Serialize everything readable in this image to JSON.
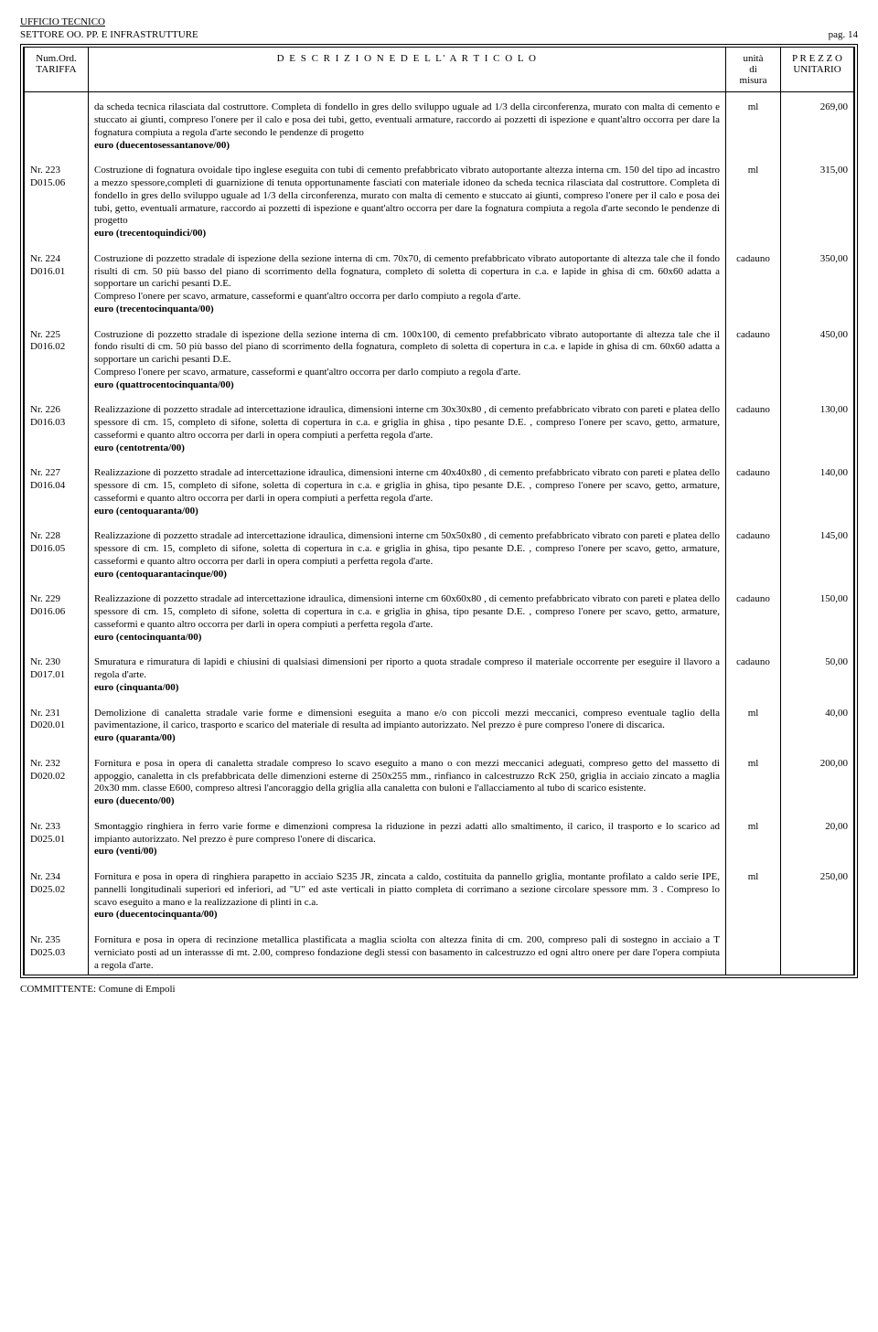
{
  "header": {
    "line1": "UFFICIO TECNICO",
    "line2": "SETTORE OO. PP. E INFRASTRUTTURE",
    "page_label": "pag. 14"
  },
  "columns": {
    "col1_l1": "Num.Ord.",
    "col1_l2": "TARIFFA",
    "col2": "D E S C R I Z I O N E   D E L L' A R T I C O L O",
    "col3_l1": "unità",
    "col3_l2": "di",
    "col3_l3": "misura",
    "col4_l1": "P R E Z Z O",
    "col4_l2": "UNITARIO"
  },
  "intro": {
    "desc": "da scheda tecnica rilasciata dal costruttore. Completa di fondello in gres dello sviluppo uguale ad 1/3 della circonferenza, murato con malta di cemento e stuccato ai giunti, compreso l'onere per il  calo e posa dei tubi, getto, eventuali armature, raccordo ai pozzetti di ispezione e quant'altro occorra per dare la fognatura compiuta a regola d'arte secondo le pendenze di progetto",
    "price_line": "euro (duecentosessantanove/00)",
    "unit": "ml",
    "price": "269,00"
  },
  "rows": [
    {
      "num1": "Nr. 223",
      "num2": "D015.06",
      "desc": "Costruzione di fognatura ovoidale tipo inglese eseguita con tubi di cemento prefabbricato vibrato autoportante altezza interna cm. 150 del tipo ad incastro a mezzo spessore,completi di guarnizione di tenuta  opportunamente fasciati con materiale idoneo da scheda tecnica rilasciata dal costruttore. Completa di fondello in gres dello sviluppo uguale ad 1/3 della circonferenza, murato con malta di cemento e stuccato ai giunti, compreso l'onere per il  calo e posa dei tubi, getto, eventuali armature, raccordo ai pozzetti di ispezione e quant'altro occorra per dare la fognatura compiuta a regola d'arte secondo le pendenze di progetto",
      "price_line": "euro (trecentoquindici/00)",
      "unit": "ml",
      "price": "315,00"
    },
    {
      "num1": "Nr. 224",
      "num2": "D016.01",
      "desc": "Costruzione di pozzetto stradale  di ispezione della sezione interna di cm. 70x70, di cemento prefabbricato vibrato autoportante di altezza tale che il fondo risulti di cm. 50  più basso del piano di scorrimento della fognatura,  completo di soletta di copertura in c.a. e lapide in ghisa di cm. 60x60 adatta a sopportare un carichi pesanti D.E.\nCompreso l'onere per scavo, armature, casseformi e quant'altro occorra  per darlo compiuto a regola d'arte.",
      "price_line": "euro (trecentocinquanta/00)",
      "unit": "cadauno",
      "price": "350,00"
    },
    {
      "num1": "Nr. 225",
      "num2": "D016.02",
      "desc": "Costruzione di pozzetto stradale  di ispezione della sezione interna di cm. 100x100, di cemento prefabbricato vibrato autoportante di altezza tale che il fondo risulti di cm. 50  più basso del piano di scorrimento della fognatura,  completo di soletta di copertura in c.a. e lapide in ghisa di cm. 60x60 adatta a sopportare un carichi pesanti D.E.\nCompreso l'onere per scavo, armature, casseformi e quant'altro occorra  per darlo compiuto a regola d'arte.",
      "price_line": "euro (quattrocentocinquanta/00)",
      "unit": "cadauno",
      "price": "450,00"
    },
    {
      "num1": "Nr. 226",
      "num2": "D016.03",
      "desc": "Realizzazione di pozzetto stradale ad intercettazione idraulica, dimensioni interne  cm 30x30x80 , di cemento prefabbricato vibrato con pareti e platea dello spessore di cm. 15, completo di sifone, soletta di copertura in c.a. e griglia in ghisa , tipo pesante D.E. , compreso l'onere per scavo, getto, armature, casseformi  e quanto altro occorra per darli in opera compiuti a perfetta regola d'arte.",
      "price_line": "euro (centotrenta/00)",
      "unit": "cadauno",
      "price": "130,00"
    },
    {
      "num1": "Nr. 227",
      "num2": "D016.04",
      "desc": "Realizzazione di pozzetto stradale ad intercettazione idraulica, dimensioni interne  cm 40x40x80 , di cemento prefabbricato vibrato con pareti e platea dello spessore di cm. 15, completo di sifone, soletta di copertura in c.a. e griglia in ghisa, tipo pesante D.E. , compreso l'onere per scavo, getto, armature, casseformi  e quanto altro occorra per darli in opera compiuti a perfetta regola d'arte.",
      "price_line": "euro (centoquaranta/00)",
      "unit": "cadauno",
      "price": "140,00"
    },
    {
      "num1": "Nr. 228",
      "num2": "D016.05",
      "desc": "Realizzazione di pozzetto stradale ad intercettazione idraulica, dimensioni interne  cm 50x50x80 , di cemento prefabbricato vibrato con pareti e platea dello spessore di cm. 15, completo di sifone, soletta di copertura in c.a. e griglia in ghisa, tipo pesante D.E. , compreso l'onere per scavo, getto, armature, casseformi  e quanto altro occorra per darli in opera compiuti a perfetta regola d'arte.",
      "price_line": "euro (centoquarantacinque/00)",
      "unit": "cadauno",
      "price": "145,00"
    },
    {
      "num1": "Nr. 229",
      "num2": "D016.06",
      "desc": "Realizzazione di pozzetto stradale ad intercettazione idraulica, dimensioni interne  cm 60x60x80 , di cemento prefabbricato vibrato con pareti e platea dello spessore di cm. 15, completo di sifone, soletta di copertura in c.a. e griglia in ghisa, tipo pesante D.E. , compreso l'onere per scavo, getto, armature, casseformi  e quanto altro occorra per darli in opera compiuti a perfetta regola d'arte.",
      "price_line": "euro (centocinquanta/00)",
      "unit": "cadauno",
      "price": "150,00"
    },
    {
      "num1": "Nr. 230",
      "num2": "D017.01",
      "desc": "Smuratura e rimuratura di lapidi e chiusini  di qualsiasi dimensioni  per riporto a quota stradale  compreso il materiale occorrente per eseguire il llavoro a regola d'arte.",
      "price_line": "euro (cinquanta/00)",
      "unit": "cadauno",
      "price": "50,00"
    },
    {
      "num1": "Nr. 231",
      "num2": "D020.01",
      "desc": "Demolizione di canaletta stradale varie forme e dimensioni eseguita a mano e/o con piccoli mezzi meccanici, compreso eventuale taglio della pavimentazione,  il carico, trasporto e scarico del materiale di resulta ad impianto autorizzato.  Nel prezzo è pure compreso l'onere di discarica.",
      "price_line": "euro (quaranta/00)",
      "unit": "ml",
      "price": "40,00"
    },
    {
      "num1": "Nr. 232",
      "num2": "D020.02",
      "desc": "Fornitura e posa in opera di canaletta stradale compreso lo scavo eseguito  a mano o  con mezzi meccanici adeguati, compreso getto del massetto di appoggio, canaletta in cls prefabbricata delle dimenzioni esterne di 250x255 mm., rinfianco in calcestruzzo RcK 250, griglia in acciaio zincato a maglia 20x30 mm.  classe E600,  compreso altresì  l'ancoraggio della griglia alla canaletta con buloni e l'allacciamento al tubo di scarico esistente.",
      "price_line": "euro (duecento/00)",
      "unit": "ml",
      "price": "200,00"
    },
    {
      "num1": "Nr. 233",
      "num2": "D025.01",
      "desc": "Smontaggio ringhiera in ferro varie forme e dimenzioni compresa la riduzione in pezzi adatti allo smaltimento, il carico, il trasporto e lo scarico ad impianto autorizzato. Nel prezzo è pure compreso l'onere di discarica.",
      "price_line": "euro (venti/00)",
      "unit": "ml",
      "price": "20,00"
    },
    {
      "num1": "Nr. 234",
      "num2": "D025.02",
      "desc": "Fornitura e posa in opera di ringhiera parapetto in acciaio S235 JR, zincata a caldo, costituita da pannello griglia, montante profilato a caldo serie IPE, pannelli longitudinali superiori ed inferiori, ad \"U\" ed aste verticali in piatto completa di corrimano a sezione circolare spessore mm. 3 . Compreso lo scavo eseguito a mano e la realizzazione di plinti in c.a.",
      "price_line": "euro (duecentocinquanta/00)",
      "unit": "ml",
      "price": "250,00"
    }
  ],
  "tail": {
    "num1": "Nr. 235",
    "num2": "D025.03",
    "desc": "Fornitura e posa in opera di recinzione metallica plastificata a maglia sciolta con altezza finita  di cm. 200, compreso pali di sostegno in acciaio a T verniciato posti ad un interassse di mt. 2.00, compreso fondazione degli stessi con basamento in calcestruzzo ed ogni altro onere per dare l'opera compiuta a regola d'arte."
  },
  "footer": "COMMITTENTE: Comune di Empoli"
}
